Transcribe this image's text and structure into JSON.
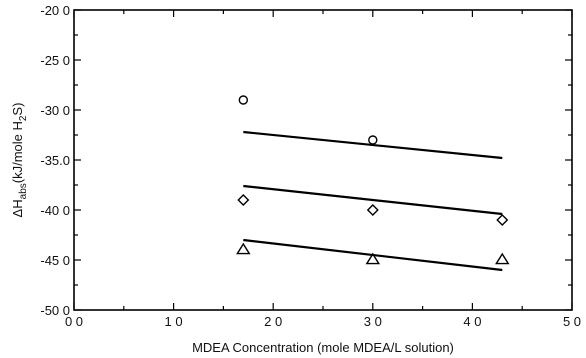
{
  "chart_data": {
    "type": "scatter",
    "title": "",
    "xlabel": "MDEA Concentration   (mole MDEA/L solution)",
    "ylabel_parts": {
      "prefix": "ΔH",
      "sub1": "abs",
      "mid": "(kJ/mole H",
      "sub2": "2",
      "suffix": "S)"
    },
    "xlim": [
      0,
      5
    ],
    "ylim": [
      -50,
      -20
    ],
    "x_ticks": [
      {
        "value": 0,
        "label": "0 0"
      },
      {
        "value": 1,
        "label": "1 0"
      },
      {
        "value": 2,
        "label": "2 0"
      },
      {
        "value": 3,
        "label": "3 0"
      },
      {
        "value": 4,
        "label": "4 0"
      },
      {
        "value": 5,
        "label": "5 0"
      }
    ],
    "y_ticks": [
      {
        "value": -20,
        "label": "-20 0"
      },
      {
        "value": -25,
        "label": "-25 0"
      },
      {
        "value": -30,
        "label": "-30 0"
      },
      {
        "value": -35,
        "label": "-35.0"
      },
      {
        "value": -40,
        "label": "-40 0"
      },
      {
        "value": -45,
        "label": "-45 0"
      },
      {
        "value": -50,
        "label": "-50 0"
      }
    ],
    "grid": false,
    "series": [
      {
        "marker": "circle",
        "points": [
          {
            "x": 1.7,
            "y": -29.0
          },
          {
            "x": 3.0,
            "y": -33.0
          }
        ],
        "fit": {
          "x0": 1.7,
          "y0": -32.2,
          "x1": 4.3,
          "y1": -34.8
        }
      },
      {
        "marker": "diamond",
        "points": [
          {
            "x": 1.7,
            "y": -39.0
          },
          {
            "x": 3.0,
            "y": -40.0
          },
          {
            "x": 4.3,
            "y": -41.0
          }
        ],
        "fit": {
          "x0": 1.7,
          "y0": -37.6,
          "x1": 4.3,
          "y1": -40.4
        }
      },
      {
        "marker": "triangle",
        "points": [
          {
            "x": 1.7,
            "y": -44.0
          },
          {
            "x": 3.0,
            "y": -45.0
          },
          {
            "x": 4.3,
            "y": -45.0
          }
        ],
        "fit": {
          "x0": 1.7,
          "y0": -43.0,
          "x1": 4.3,
          "y1": -46.0
        }
      }
    ]
  }
}
